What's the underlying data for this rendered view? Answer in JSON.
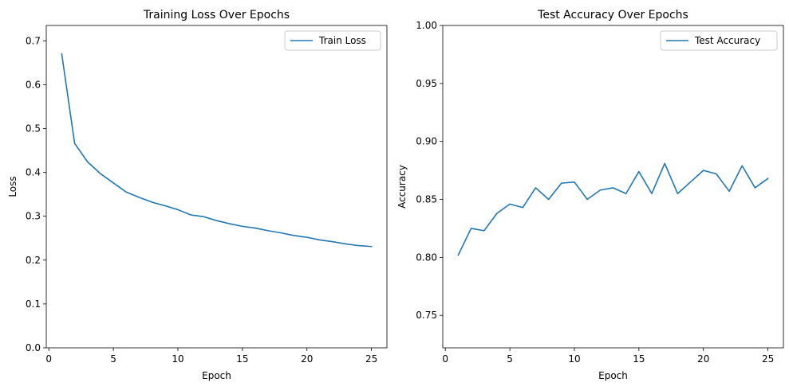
{
  "chart_data": [
    {
      "type": "line",
      "title": "Training Loss Over Epochs",
      "xlabel": "Epoch",
      "ylabel": "Loss",
      "xlim": [
        -0.2,
        26.2
      ],
      "ylim": [
        0,
        0.735
      ],
      "xticks": [
        0,
        5,
        10,
        15,
        20,
        25
      ],
      "yticks": [
        0.0,
        0.1,
        0.2,
        0.3,
        0.4,
        0.5,
        0.6,
        0.7
      ],
      "ytick_labels": [
        "0.0",
        "0.1",
        "0.2",
        "0.3",
        "0.4",
        "0.5",
        "0.6",
        "0.7"
      ],
      "grid": false,
      "legend_position": "top-right",
      "color": "#1f77b4",
      "series": [
        {
          "name": "Train Loss",
          "x": [
            1,
            2,
            3,
            4,
            5,
            6,
            7,
            8,
            9,
            10,
            11,
            12,
            13,
            14,
            15,
            16,
            17,
            18,
            19,
            20,
            21,
            22,
            23,
            24,
            25
          ],
          "y": [
            0.67,
            0.466,
            0.424,
            0.397,
            0.376,
            0.355,
            0.343,
            0.332,
            0.324,
            0.315,
            0.303,
            0.299,
            0.29,
            0.283,
            0.277,
            0.273,
            0.267,
            0.262,
            0.256,
            0.252,
            0.246,
            0.242,
            0.237,
            0.233,
            0.231
          ]
        }
      ]
    },
    {
      "type": "line",
      "title": "Test Accuracy Over Epochs",
      "xlabel": "Epoch",
      "ylabel": "Accuracy",
      "xlim": [
        -0.2,
        26.2
      ],
      "ylim": [
        0.722,
        1.0
      ],
      "xticks": [
        0,
        5,
        10,
        15,
        20,
        25
      ],
      "yticks": [
        0.75,
        0.8,
        0.85,
        0.9,
        0.95,
        1.0
      ],
      "ytick_labels": [
        "0.75",
        "0.80",
        "0.85",
        "0.90",
        "0.95",
        "1.00"
      ],
      "grid": false,
      "legend_position": "top-right",
      "color": "#1f77b4",
      "series": [
        {
          "name": "Test Accuracy",
          "x": [
            1,
            2,
            3,
            4,
            5,
            6,
            7,
            8,
            9,
            10,
            11,
            12,
            13,
            14,
            15,
            16,
            17,
            18,
            19,
            20,
            21,
            22,
            23,
            24,
            25
          ],
          "y": [
            0.802,
            0.825,
            0.823,
            0.838,
            0.846,
            0.843,
            0.86,
            0.85,
            0.864,
            0.865,
            0.85,
            0.858,
            0.86,
            0.855,
            0.874,
            0.855,
            0.881,
            0.855,
            0.865,
            0.875,
            0.872,
            0.857,
            0.879,
            0.86,
            0.868
          ]
        }
      ]
    }
  ]
}
